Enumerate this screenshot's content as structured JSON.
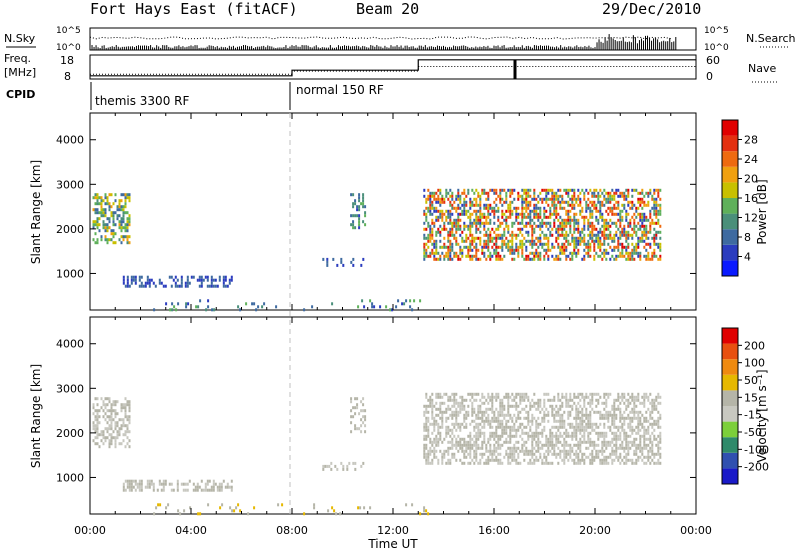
{
  "header": {
    "station": "Fort Hays East (fitACF)",
    "beam": "Beam 20",
    "date": "29/Dec/2010"
  },
  "status_panels": {
    "nsky_label": "N.Sky",
    "nsearch_label": "N.Search",
    "noise_ticks": [
      "10^5",
      "10^0"
    ],
    "freq_label": "Freq.",
    "freq_unit": "[MHz]",
    "freq_ticks": [
      "18",
      "8"
    ],
    "nave_label": "Nave",
    "nave_ticks": [
      "60",
      "0"
    ],
    "cpid_label": "CPID",
    "programs": [
      {
        "name": "themis 3300 RF",
        "start_hour": 0
      },
      {
        "name": "normal 150 RF",
        "start_hour": 8
      }
    ],
    "freq_steps": [
      [
        0,
        10
      ],
      [
        8,
        11.3
      ],
      [
        13,
        13.2
      ],
      [
        24,
        13.2
      ]
    ],
    "nave_steps": [
      [
        0,
        8
      ],
      [
        8,
        22
      ],
      [
        13,
        48
      ],
      [
        24,
        48
      ]
    ]
  },
  "colors": {
    "power_scale": [
      "#0a1aff",
      "#2b3cbe",
      "#3e6aa0",
      "#4a8f7a",
      "#5fb05a",
      "#c8c000",
      "#f0a010",
      "#ee6a10",
      "#e43010",
      "#e00000"
    ],
    "velocity_scale": [
      "#1a1ac8",
      "#3050b0",
      "#2f8a6a",
      "#7ccf3a",
      "#c8c8c0",
      "#b5b5a8",
      "#e6b800",
      "#ef8a10",
      "#e85010",
      "#e00000"
    ]
  },
  "chart_data": [
    {
      "type": "heatmap",
      "name": "power",
      "xlabel": "",
      "ylabel": "Slant Range [km]",
      "xlim": [
        0,
        24
      ],
      "ylim": [
        180,
        4600
      ],
      "yticks": [
        1000,
        2000,
        3000,
        4000
      ],
      "colorbar": {
        "label": "Power [dB]",
        "ticks": [
          "4",
          "8",
          "12",
          "16",
          "20",
          "24",
          "28"
        ],
        "range": [
          0,
          30
        ]
      },
      "scatter_regions": [
        {
          "x": [
            0.1,
            1.6
          ],
          "y": [
            1700,
            2800
          ],
          "value": [
            6,
            20
          ],
          "density": 0.5
        },
        {
          "x": [
            1.3,
            5.6
          ],
          "y": [
            700,
            950
          ],
          "value": [
            4,
            8
          ],
          "density": 0.45
        },
        {
          "x": [
            10.3,
            10.9
          ],
          "y": [
            2000,
            2800
          ],
          "value": [
            5,
            14
          ],
          "density": 0.35
        },
        {
          "x": [
            9.2,
            10.8
          ],
          "y": [
            1150,
            1350
          ],
          "value": [
            4,
            8
          ],
          "density": 0.3
        },
        {
          "x": [
            13.2,
            22.6
          ],
          "y": [
            1300,
            2900
          ],
          "value": [
            4,
            28
          ],
          "density": 0.55
        },
        {
          "x": [
            2.5,
            13.5
          ],
          "y": [
            200,
            420
          ],
          "value": [
            4,
            14
          ],
          "density": 0.08
        }
      ]
    },
    {
      "type": "heatmap",
      "name": "velocity",
      "xlabel": "Time UT",
      "ylabel": "Slant Range [km]",
      "xlim": [
        0,
        24
      ],
      "ylim": [
        180,
        4600
      ],
      "yticks": [
        1000,
        2000,
        3000,
        4000
      ],
      "xticks": [
        "00:00",
        "04:00",
        "08:00",
        "12:00",
        "16:00",
        "20:00",
        "00:00"
      ],
      "colorbar": {
        "label": "Velocity [m s⁻¹]",
        "ticks": [
          "200",
          "100",
          "50",
          "15",
          "-15",
          "-50",
          "-100",
          "-200"
        ],
        "range": [
          -250,
          250
        ]
      },
      "scatter_regions": [
        {
          "x": [
            0.1,
            1.6
          ],
          "y": [
            1700,
            2800
          ],
          "value": [
            -15,
            15
          ],
          "density": 0.5
        },
        {
          "x": [
            1.3,
            5.6
          ],
          "y": [
            700,
            950
          ],
          "value": [
            -15,
            20
          ],
          "density": 0.45
        },
        {
          "x": [
            10.3,
            10.9
          ],
          "y": [
            2000,
            2800
          ],
          "value": [
            -10,
            10
          ],
          "density": 0.35
        },
        {
          "x": [
            9.2,
            10.8
          ],
          "y": [
            1150,
            1350
          ],
          "value": [
            -10,
            10
          ],
          "density": 0.3
        },
        {
          "x": [
            13.2,
            22.6
          ],
          "y": [
            1300,
            2900
          ],
          "value": [
            -14,
            14
          ],
          "density": 0.55
        },
        {
          "x": [
            2.5,
            13.5
          ],
          "y": [
            200,
            420
          ],
          "value": [
            -60,
            -20
          ],
          "density": 0.08
        }
      ]
    }
  ]
}
